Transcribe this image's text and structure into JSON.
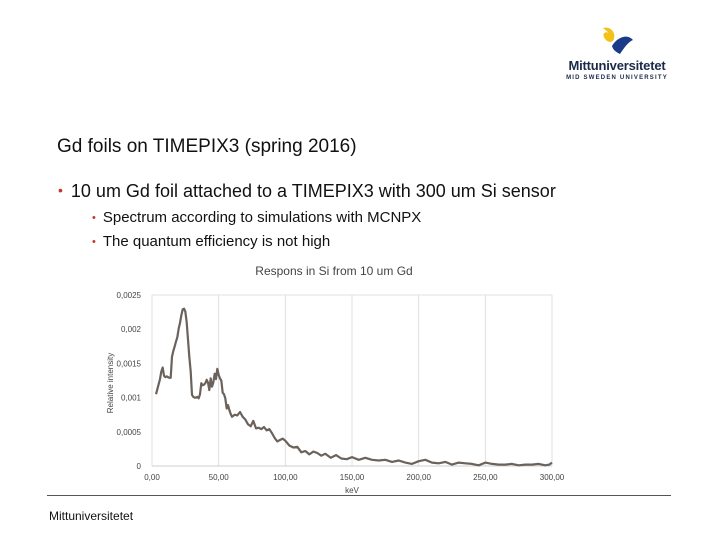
{
  "logo": {
    "name": "Mittuniversitetet",
    "subtitle": "MID SWEDEN UNIVERSITY",
    "colors": {
      "yellow": "#f2c21b",
      "blue": "#1a3a8a"
    }
  },
  "slide": {
    "title": "Gd foils on TIMEPIX3 (spring 2016)",
    "bullet": "10 um Gd foil attached to a TIMEPIX3 with 300 um Si sensor",
    "subbullets": [
      "Spectrum according to simulations with MCNPX",
      "The quantum efficiency is not high"
    ],
    "bullet_color": "#c0392b"
  },
  "chart_data": {
    "type": "line",
    "title": "Respons in Si from 10 um Gd",
    "xlabel": "keV",
    "ylabel": "Relative intensity",
    "xlim": [
      0,
      300
    ],
    "ylim": [
      0,
      0.0025
    ],
    "xticks": [
      0,
      50,
      100,
      150,
      200,
      250,
      300
    ],
    "xtick_labels": [
      "0,00",
      "50,00",
      "100,00",
      "150,00",
      "200,00",
      "250,00",
      "300,00"
    ],
    "yticks": [
      0,
      0.0005,
      0.001,
      0.0015,
      0.002,
      0.0025
    ],
    "ytick_labels": [
      "0",
      "0,0005",
      "0,001",
      "0,0015",
      "0,002",
      "0,0025"
    ],
    "grid": "vertical",
    "line_color": "#6b625c",
    "series": [
      {
        "x": [
          3,
          4,
          6,
          7,
          8,
          9,
          10,
          11,
          12,
          13,
          14,
          15,
          16,
          17,
          18,
          19,
          20,
          21,
          22,
          23,
          24,
          25,
          26,
          27,
          28,
          29,
          30,
          31,
          32,
          33,
          34,
          35,
          36,
          37,
          38,
          39,
          40,
          41,
          42,
          43,
          44,
          45,
          46,
          47,
          48,
          49,
          50,
          51,
          52,
          53,
          54,
          55,
          56,
          57,
          58,
          59,
          60,
          62,
          64,
          66,
          68,
          70,
          72,
          74,
          76,
          78,
          80,
          82,
          84,
          86,
          88,
          90,
          92,
          94,
          96,
          98,
          100,
          103,
          106,
          109,
          112,
          115,
          118,
          121,
          124,
          127,
          130,
          134,
          138,
          142,
          146,
          150,
          155,
          160,
          165,
          170,
          175,
          180,
          185,
          190,
          195,
          200,
          205,
          210,
          215,
          220,
          225,
          230,
          235,
          240,
          245,
          250,
          255,
          260,
          265,
          270,
          275,
          280,
          285,
          290,
          295,
          298,
          300
        ],
        "y": [
          0.00105,
          0.00112,
          0.00127,
          0.00138,
          0.00144,
          0.00132,
          0.0013,
          0.00131,
          0.0013,
          0.00129,
          0.00129,
          0.0016,
          0.00168,
          0.00175,
          0.00182,
          0.00188,
          0.00201,
          0.00209,
          0.0022,
          0.00229,
          0.0023,
          0.00226,
          0.0021,
          0.00185,
          0.0016,
          0.00138,
          0.00104,
          0.00101,
          0.001,
          0.001,
          0.00101,
          0.00099,
          0.00105,
          0.00121,
          0.00118,
          0.00119,
          0.00121,
          0.00126,
          0.00122,
          0.00111,
          0.00128,
          0.00116,
          0.00122,
          0.00135,
          0.00127,
          0.00142,
          0.00133,
          0.00128,
          0.00125,
          0.00107,
          0.00105,
          0.00099,
          0.00084,
          0.00089,
          0.00082,
          0.00076,
          0.00072,
          0.00075,
          0.00074,
          0.00079,
          0.00072,
          0.00068,
          0.00061,
          0.00058,
          0.00066,
          0.00055,
          0.00056,
          0.00054,
          0.00057,
          0.00052,
          0.00054,
          0.00048,
          0.00041,
          0.00036,
          0.00038,
          0.0004,
          0.00037,
          0.0003,
          0.00027,
          0.00028,
          0.0002,
          0.00022,
          0.00017,
          0.00021,
          0.00019,
          0.00015,
          0.00018,
          0.00012,
          0.00016,
          0.00011,
          0.0001,
          0.00013,
          9e-05,
          0.00012,
          9e-05,
          8e-05,
          9e-05,
          6e-05,
          8e-05,
          5e-05,
          3e-05,
          7e-05,
          9e-05,
          5e-05,
          4e-05,
          6e-05,
          2e-05,
          5e-05,
          4e-05,
          3e-05,
          1e-05,
          5e-05,
          3e-05,
          2e-05,
          2e-05,
          3e-05,
          1e-05,
          2e-05,
          2e-05,
          3e-05,
          1e-05,
          2e-05,
          5e-05
        ]
      }
    ]
  },
  "footer": {
    "text": "Mittuniversitetet"
  }
}
